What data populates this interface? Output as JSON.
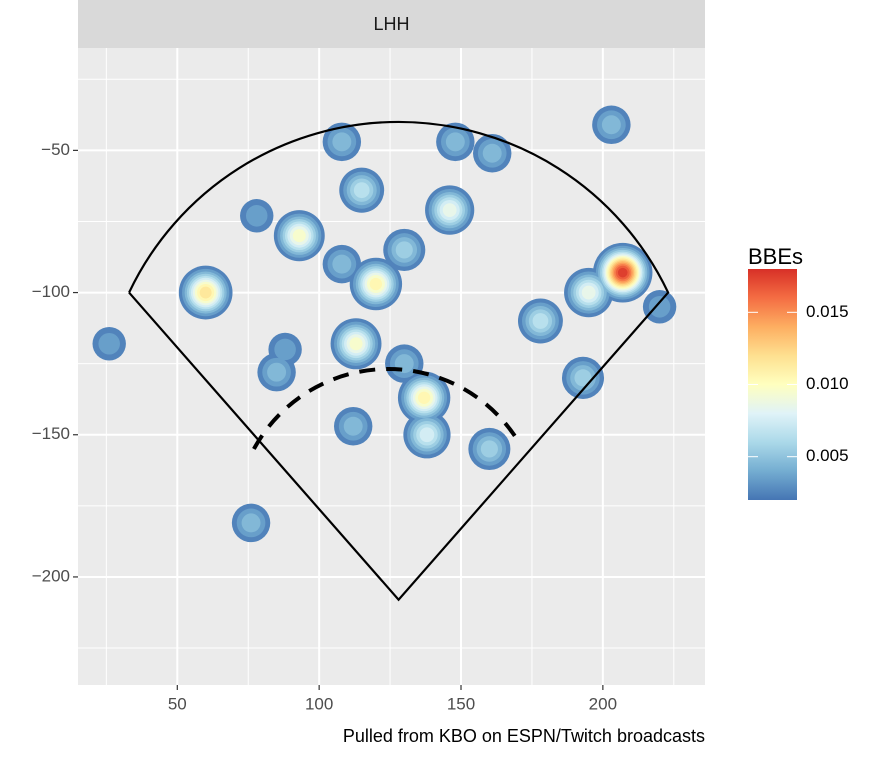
{
  "chart_data": {
    "type": "density",
    "facet": "LHH",
    "caption": "Pulled from KBO on ESPN/Twitch broadcasts",
    "xlim": [
      15,
      236
    ],
    "ylim": [
      -238,
      -14
    ],
    "xticks": [
      50,
      100,
      150,
      200
    ],
    "xminor": [
      25,
      75,
      125,
      175,
      225
    ],
    "yticks": [
      {
        "value": -50,
        "label": "−50"
      },
      {
        "value": -100,
        "label": "−100"
      },
      {
        "value": -150,
        "label": "−150"
      },
      {
        "value": -200,
        "label": "−200"
      }
    ],
    "yminor": [
      -25,
      -75,
      -125,
      -175,
      -225
    ],
    "grid": true,
    "bandwidth": 5,
    "levels": [
      0.002,
      0.003,
      0.004,
      0.005,
      0.006,
      0.007,
      0.008,
      0.009,
      0.01,
      0.011,
      0.012,
      0.013,
      0.014,
      0.015,
      0.016,
      0.017
    ],
    "hotspots": [
      {
        "x": 203,
        "y": -41,
        "density": 0.005
      },
      {
        "x": 108,
        "y": -47,
        "density": 0.005
      },
      {
        "x": 148,
        "y": -47,
        "density": 0.005
      },
      {
        "x": 161,
        "y": -51,
        "density": 0.005
      },
      {
        "x": 115,
        "y": -64,
        "density": 0.007
      },
      {
        "x": 146,
        "y": -71,
        "density": 0.009
      },
      {
        "x": 93,
        "y": -80,
        "density": 0.01
      },
      {
        "x": 78,
        "y": -73,
        "density": 0.004
      },
      {
        "x": 120,
        "y": -97,
        "density": 0.011
      },
      {
        "x": 130,
        "y": -85,
        "density": 0.006
      },
      {
        "x": 108,
        "y": -90,
        "density": 0.005
      },
      {
        "x": 60,
        "y": -100,
        "density": 0.012
      },
      {
        "x": 207,
        "y": -93,
        "density": 0.018
      },
      {
        "x": 195,
        "y": -100,
        "density": 0.009
      },
      {
        "x": 220,
        "y": -105,
        "density": 0.004
      },
      {
        "x": 178,
        "y": -110,
        "density": 0.007
      },
      {
        "x": 26,
        "y": -118,
        "density": 0.004
      },
      {
        "x": 113,
        "y": -118,
        "density": 0.01
      },
      {
        "x": 85,
        "y": -128,
        "density": 0.005
      },
      {
        "x": 88,
        "y": -120,
        "density": 0.004
      },
      {
        "x": 137,
        "y": -137,
        "density": 0.011
      },
      {
        "x": 138,
        "y": -150,
        "density": 0.008
      },
      {
        "x": 130,
        "y": -125,
        "density": 0.005
      },
      {
        "x": 160,
        "y": -155,
        "density": 0.006
      },
      {
        "x": 193,
        "y": -130,
        "density": 0.006
      },
      {
        "x": 112,
        "y": -147,
        "density": 0.005
      },
      {
        "x": 76,
        "y": -181,
        "density": 0.005
      }
    ],
    "field": {
      "left": [
        33,
        -100
      ],
      "home": [
        128,
        -208
      ],
      "right": [
        223,
        -100
      ],
      "top": [
        128,
        -40
      ]
    },
    "infield": {
      "left": [
        77,
        -155
      ],
      "top": [
        128,
        -127
      ],
      "right": [
        170,
        -152
      ]
    },
    "legend": {
      "title": "BBEs",
      "clim": [
        0.002,
        0.018
      ],
      "ticks": [
        0.005,
        {
          "value": 0.01,
          "label": "0.010"
        },
        0.015
      ],
      "colorscale": [
        "#4575b4",
        "#74add1",
        "#abd9e9",
        "#e0f3f8",
        "#ffffbf",
        "#fee090",
        "#fdae61",
        "#f46d43",
        "#d73027"
      ]
    }
  }
}
